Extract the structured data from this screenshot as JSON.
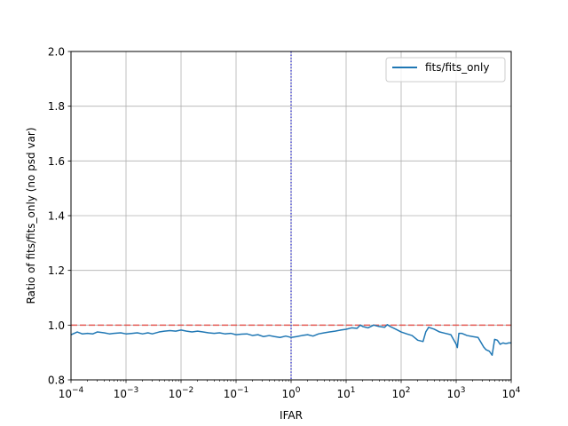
{
  "chart_data": {
    "type": "line",
    "xscale": "log",
    "xlabel": "IFAR",
    "ylabel": "Ratio of fits/fits_only (no psd var)",
    "xlim": [
      0.0001,
      10000
    ],
    "ylim": [
      0.8,
      2.0
    ],
    "grid": true,
    "legend_position": "top-right",
    "x_ticks": [
      {
        "value": 0.0001,
        "base": "10",
        "exp": "−4"
      },
      {
        "value": 0.001,
        "base": "10",
        "exp": "−3"
      },
      {
        "value": 0.01,
        "base": "10",
        "exp": "−2"
      },
      {
        "value": 0.1,
        "base": "10",
        "exp": "−1"
      },
      {
        "value": 1,
        "base": "10",
        "exp": "0"
      },
      {
        "value": 10,
        "base": "10",
        "exp": "1"
      },
      {
        "value": 100,
        "base": "10",
        "exp": "2"
      },
      {
        "value": 1000,
        "base": "10",
        "exp": "3"
      },
      {
        "value": 10000,
        "base": "10",
        "exp": "4"
      }
    ],
    "y_ticks": [
      {
        "value": 0.8,
        "label": "0.8"
      },
      {
        "value": 1.0,
        "label": "1.0"
      },
      {
        "value": 1.2,
        "label": "1.2"
      },
      {
        "value": 1.4,
        "label": "1.4"
      },
      {
        "value": 1.6,
        "label": "1.6"
      },
      {
        "value": 1.8,
        "label": "1.8"
      },
      {
        "value": 2.0,
        "label": "2.0"
      }
    ],
    "series": [
      {
        "name": "fits/fits_only",
        "color": "#1f77b4",
        "x": [
          0.0001,
          0.00013,
          0.00016,
          0.0002,
          0.00025,
          0.0003,
          0.0004,
          0.0005,
          0.0006,
          0.0008,
          0.001,
          0.0013,
          0.0016,
          0.002,
          0.0025,
          0.003,
          0.004,
          0.005,
          0.0063,
          0.008,
          0.01,
          0.0126,
          0.0158,
          0.02,
          0.025,
          0.0316,
          0.04,
          0.05,
          0.063,
          0.08,
          0.1,
          0.126,
          0.158,
          0.2,
          0.25,
          0.316,
          0.4,
          0.5,
          0.63,
          0.8,
          1.0,
          1.26,
          1.58,
          2.0,
          2.5,
          3.16,
          4.0,
          5.0,
          6.3,
          8.0,
          10,
          12.6,
          15.8,
          18,
          20,
          25,
          31.6,
          40,
          50,
          56,
          63,
          80,
          100,
          126,
          158,
          200,
          250,
          280,
          316,
          400,
          500,
          630,
          800,
          1000,
          1050,
          1120,
          1260,
          1580,
          2000,
          2500,
          3160,
          3500,
          4000,
          4500,
          5000,
          5600,
          6300,
          7100,
          8000,
          9000,
          10000
        ],
        "y": [
          0.965,
          0.975,
          0.968,
          0.97,
          0.968,
          0.975,
          0.972,
          0.968,
          0.97,
          0.972,
          0.968,
          0.97,
          0.972,
          0.968,
          0.972,
          0.968,
          0.975,
          0.978,
          0.98,
          0.978,
          0.982,
          0.978,
          0.975,
          0.978,
          0.975,
          0.972,
          0.97,
          0.972,
          0.968,
          0.97,
          0.965,
          0.967,
          0.968,
          0.962,
          0.965,
          0.958,
          0.962,
          0.958,
          0.955,
          0.96,
          0.955,
          0.958,
          0.962,
          0.965,
          0.96,
          0.968,
          0.972,
          0.975,
          0.978,
          0.982,
          0.985,
          0.99,
          0.988,
          1.0,
          0.995,
          0.99,
          1.0,
          0.995,
          0.992,
          1.002,
          0.995,
          0.985,
          0.975,
          0.968,
          0.962,
          0.945,
          0.94,
          0.975,
          0.992,
          0.985,
          0.975,
          0.97,
          0.965,
          0.93,
          0.918,
          0.97,
          0.97,
          0.962,
          0.958,
          0.955,
          0.92,
          0.91,
          0.905,
          0.89,
          0.948,
          0.945,
          0.93,
          0.935,
          0.932,
          0.935,
          0.935
        ]
      }
    ],
    "reference_lines": [
      {
        "orientation": "horizontal",
        "value": 1.0,
        "color": "#e8504a",
        "style": "dashed"
      },
      {
        "orientation": "vertical",
        "value": 1.0,
        "color": "#1f1fcc",
        "style": "dotted"
      }
    ]
  }
}
